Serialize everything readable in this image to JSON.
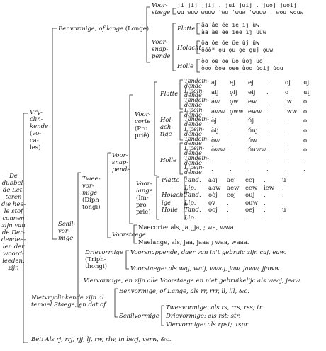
{
  "root": {
    "lines": [
      "De",
      "dubbel-",
      "de Let-",
      "teren",
      "die hee-",
      "le stof",
      "connen",
      "zijn van",
      "de Der-",
      "dendee-",
      "len der",
      "woord-",
      "leeden,",
      "zijn"
    ]
  },
  "vryclinkende": {
    "lines": [
      "Vry-",
      "clin-",
      "kende",
      "(vo-",
      "ca-",
      "les)"
    ]
  },
  "eenvormige_long": {
    "label": "Eenvormige, of lange",
    "paren": "(Longe)"
  },
  "voorstaege_top": {
    "lines": [
      "Voor-",
      "stæge"
    ],
    "rows": [
      "ji  jij  jjij  .  jui  juij  .  juoj  juoij",
      "wu  wuw  wuuw  'wu  'wuw  'wuuw  .  wou  wouw"
    ]
  },
  "voorsnappende_top": {
    "lines": [
      "Voor-",
      "snap-",
      "pende"
    ]
  },
  "platte_top": {
    "label": "Platte",
    "rows": [
      "åa  åe  ée  ie  ij  ùw",
      "àa  àe  èe  iee  ìj  ùuw"
    ]
  },
  "holacht_top": {
    "label": "Holacht",
    "rows": [
      "ôa  ôe  ôe  ûe  ûj  ûw",
      "ôôô*  ǫu  ǫu  ǫe  ǫuj  ǫuw"
    ]
  },
  "holle_top": {
    "label": "Holle",
    "rows": [
      "òo  òe  òe  ùo  ùoj  ùo",
      "òoo  òǫe  ǫee  ùoo  ùoij  ùou"
    ]
  },
  "schilvormige": {
    "lines": [
      "Schil-",
      "vor-",
      "mige"
    ]
  },
  "tweevormige": {
    "lines": [
      "Twee-",
      "vor-",
      "mige",
      "(Diph",
      "tongi)"
    ]
  },
  "voorsnappende_mid": {
    "lines": [
      "Voor-",
      "snap-",
      "pende"
    ]
  },
  "voorcorte": {
    "lines": [
      "Voor-",
      "corte",
      "(Pro",
      "prië)"
    ]
  },
  "platte_mid": {
    "label": "Platte"
  },
  "holachtige": {
    "lines": [
      "Hol-",
      "ach-",
      "tige"
    ]
  },
  "holle_mid": {
    "label": "Holle"
  },
  "sub_rows_a": [
    {
      "label": [
        "Tandein-",
        "dende"
      ],
      "vals": [
        "aj",
        "ej",
        "ej",
        ".",
        "oj",
        "uj"
      ]
    },
    {
      "label": [
        "Lipein-",
        "dende"
      ],
      "vals": [
        "aij",
        "ǫij",
        "eij",
        ".",
        "o",
        "uij"
      ]
    },
    {
      "label": [
        "Tandein-",
        "dende"
      ],
      "vals": [
        "aw",
        "ǫw",
        "ew",
        ".",
        "iw",
        "o"
      ]
    },
    {
      "label": [
        "Lipein-",
        "dende"
      ],
      "vals": [
        "aww",
        "ǫww",
        "eww",
        ".",
        "iww",
        "o"
      ]
    },
    {
      "label": [
        "Tandein-",
        "dende"
      ],
      "vals": [
        "òj",
        ".",
        "ǔj",
        ".",
        ".",
        "o"
      ]
    },
    {
      "label": [
        "Lipein-",
        "dende"
      ],
      "vals": [
        "òij",
        ".",
        "ǔuj",
        ".",
        ".",
        "o"
      ]
    },
    {
      "label": [
        "Tandein-",
        "dende"
      ],
      "vals": [
        "òw",
        ".",
        "ǔw",
        ".",
        ".",
        "o"
      ]
    },
    {
      "label": [
        "Lipein-",
        "dende"
      ],
      "vals": [
        "òww",
        ".",
        "ǔuww",
        ".",
        ".",
        "o"
      ]
    },
    {
      "label": [
        "Tandein-",
        "dende"
      ],
      "vals": [
        ".",
        ".",
        ".",
        ".",
        ".",
        "."
      ]
    },
    {
      "label": [
        "Lipein-",
        "dende"
      ],
      "vals": [
        ".",
        ".",
        ".",
        ".",
        ".",
        "."
      ]
    }
  ],
  "voorlange": {
    "lines": [
      "Voor-",
      "lange",
      "(Im-",
      "pro",
      "prie)"
    ]
  },
  "sub_rows_b": [
    {
      "group": "Platte",
      "label": "Tand.",
      "vals": [
        "aaj",
        "aej",
        "eej",
        ".",
        "u"
      ]
    },
    {
      "group": "",
      "label": "Lip.",
      "vals": [
        "aaw",
        "aew",
        "eew",
        "iew",
        "."
      ]
    },
    {
      "group": "Holacht",
      "label": "Tand.",
      "vals": [
        "òòj",
        "eoj",
        "ouj",
        ".",
        "."
      ]
    },
    {
      "group": "ige",
      "label": "Lip.",
      "vals": [
        "ǫv",
        ".",
        "ouw",
        ".",
        "."
      ]
    },
    {
      "group": "Holle",
      "label": "Tand.",
      "vals": [
        "ooj",
        ".",
        "oej",
        ".",
        "u"
      ]
    },
    {
      "group": "",
      "label": "Lip.",
      "vals": [
        ".",
        ".",
        ".",
        ".",
        "."
      ]
    }
  ],
  "naecorte": "Naecorte: als, ja, jja, ; wa, wwa.",
  "voorstaege_mid": "Voorstaege",
  "naelange": "Naelange, als, jaa, jaaa ; waa, waaa.",
  "drievormige": {
    "lines": [
      "Drievormige",
      "(Triph-",
      "thongi)"
    ]
  },
  "drie_voorsnappende": "Voorsnappende, daer van in't gebruic zijn caj, eaw.",
  "drie_voorstaege": "Voorstaege: als waj, waij, wwaj, jaw, jaww, jjaww.",
  "viervormige": "Viervormige, en zijn alle Voorstaege en niet gebruikelijc als weaj, jeaw.",
  "nietvryclinkende": {
    "lines": [
      "Nietvryclinkende zijn al",
      "temael Staege, en dat of"
    ]
  },
  "eenvormige_bot": "Eenvormige, of Lange, als rr, rrr, ll, lll, &c.",
  "schilvormige_bot": "Schilvormige",
  "twee_bot": "Tweevormige: als rs, rrs, rss; tr.",
  "drie_bot": "Drievormige: als rst; str.",
  "vier_bot": "Viervormige: als rpst; 'tspr.",
  "bei": "Bei: Als rj, rrj, rjj, lj, rw, rlw, in berj, verw, &c."
}
